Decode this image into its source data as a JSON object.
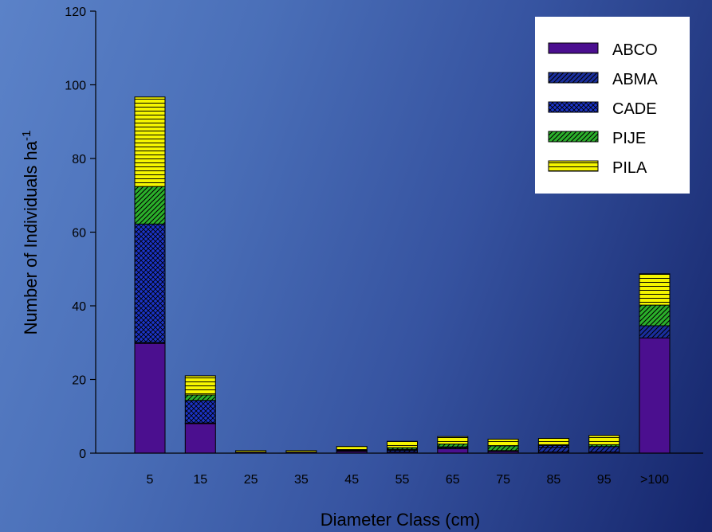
{
  "chart_data": {
    "type": "bar",
    "stacked": true,
    "categories": [
      "5",
      "15",
      "25",
      "35",
      "45",
      "55",
      "65",
      "75",
      "85",
      "95",
      ">100"
    ],
    "series": [
      {
        "name": "ABCO",
        "values": [
          29.8,
          8.0,
          0.3,
          0.3,
          0.5,
          0.3,
          1.2,
          0.5,
          0.3,
          0.3,
          31.3
        ],
        "color": "#4b0f8f",
        "pattern": "solid"
      },
      {
        "name": "ABMA",
        "values": [
          0.3,
          0.2,
          0.0,
          0.0,
          0.0,
          0.5,
          0.3,
          0.2,
          1.3,
          1.5,
          3.3
        ],
        "color": "#1a2f9e",
        "pattern": "diagonal-hatch"
      },
      {
        "name": "CADE",
        "values": [
          32.1,
          6.1,
          0.0,
          0.0,
          0.2,
          0.2,
          0.2,
          0.0,
          0.5,
          0.0,
          0.0
        ],
        "color": "#1b34c8",
        "pattern": "cross-hatch"
      },
      {
        "name": "PIJE",
        "values": [
          10.2,
          1.5,
          0.0,
          0.0,
          0.2,
          0.5,
          0.8,
          1.3,
          0.2,
          0.5,
          5.6
        ],
        "color": "#2bb02b",
        "pattern": "diagonal-hatch"
      },
      {
        "name": "PILA",
        "values": [
          24.3,
          5.2,
          0.4,
          0.4,
          0.9,
          1.7,
          2.0,
          1.8,
          1.7,
          2.5,
          8.5
        ],
        "color": "#f5f500",
        "pattern": "horizontal-lines"
      }
    ],
    "xlabel": "Diameter Class (cm)",
    "ylabel": "Number of Individuals ha",
    "ylabel_superscript": "-1",
    "ylim": [
      0,
      120
    ],
    "yticks": [
      "0",
      "20",
      "40",
      "60",
      "80",
      "100",
      "120"
    ],
    "grid": false,
    "legend_position": "top-right"
  }
}
